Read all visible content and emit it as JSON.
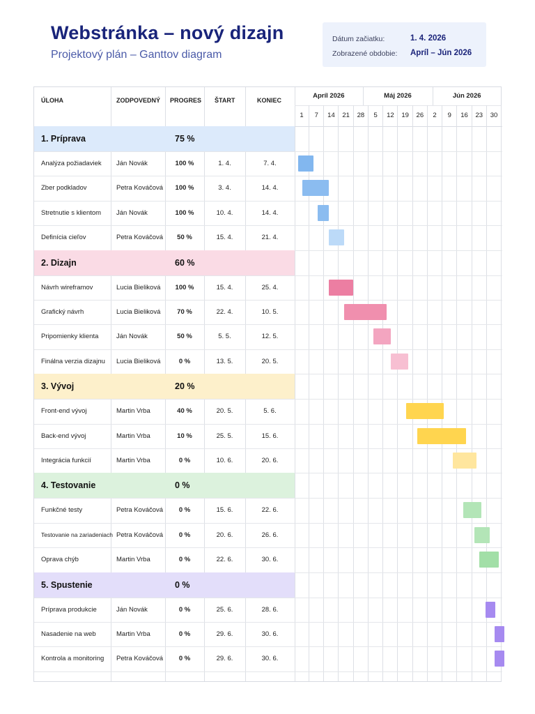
{
  "header": {
    "title": "Webstránka – nový dizajn",
    "subtitle": "Projektový plán – Ganttov diagram"
  },
  "info": {
    "start_label": "Dátum začiatku:",
    "start_value": "1. 4. 2026",
    "period_label": "Zobrazené obdobie:",
    "period_value": "Apríl – Jún 2026"
  },
  "columns": {
    "task": "ÚLOHA",
    "owner": "ZODPOVEDNÝ",
    "progress": "PROGRES",
    "start": "ŠTART",
    "end": "KONIEC"
  },
  "timeline": {
    "months": [
      "Apríl 2026",
      "Máj 2026",
      "Jún 2026"
    ],
    "days": [
      "1",
      "7",
      "14",
      "21",
      "28",
      "5",
      "12",
      "19",
      "26",
      "2",
      "9",
      "16",
      "23",
      "30"
    ]
  },
  "colors": {
    "blue": "#8fc0f2",
    "blue_light": "#bfdcf8",
    "pink": "#ee86a8",
    "pink_light": "#f7bfd1",
    "yellow": "#ffd54f",
    "yellow_light": "#ffe7a3",
    "green": "#9fdfa6",
    "green_light": "#c6ecc9",
    "purple": "#a78bf0",
    "band_blue": "#dceafb",
    "band_pink": "#fadbe5",
    "band_yellow": "#fdf0cb",
    "band_green": "#dcf2dd",
    "band_purple": "#e3defa"
  },
  "groups": [
    {
      "label": "1.  Príprava",
      "progress": "75 %",
      "band": "#dceafb",
      "tasks": [
        {
          "name": "Analýza požiadaviek",
          "owner": "Ján Novák",
          "progress": "100 %",
          "start": "1. 4.",
          "end": "7. 4.",
          "s": 1,
          "e": 7,
          "color": "#82b7ef"
        },
        {
          "name": "Zber podkladov",
          "owner": "Petra Kováčová",
          "progress": "100 %",
          "start": "3. 4.",
          "end": "14. 4.",
          "s": 3,
          "e": 14,
          "color": "#8bbcf0"
        },
        {
          "name": "Stretnutie s klientom",
          "owner": "Ján Novák",
          "progress": "100 %",
          "start": "10. 4.",
          "end": "14. 4.",
          "s": 10,
          "e": 14,
          "color": "#8bbcf0"
        },
        {
          "name": "Definícia cieľov",
          "owner": "Petra Kováčová",
          "progress": "50 %",
          "start": "15. 4.",
          "end": "21. 4.",
          "s": 15,
          "e": 21,
          "color": "#bcdaf8"
        }
      ]
    },
    {
      "label": "2.  Dizajn",
      "progress": "60 %",
      "band": "#fadbe5",
      "tasks": [
        {
          "name": "Návrh wireframov",
          "owner": "Lucia Bieliková",
          "progress": "100 %",
          "start": "15. 4.",
          "end": "25. 4.",
          "s": 15,
          "e": 25,
          "color": "#ec7ea2"
        },
        {
          "name": "Grafický návrh",
          "owner": "Lucia Bieliková",
          "progress": "70 %",
          "start": "22. 4.",
          "end": "10. 5.",
          "s": 22,
          "e": 40,
          "color": "#f08fae"
        },
        {
          "name": "Pripomienky klienta",
          "owner": "Ján Novák",
          "progress": "50 %",
          "start": "5. 5.",
          "end": "12. 5.",
          "s": 35,
          "e": 42,
          "color": "#f3a5c0"
        },
        {
          "name": "Finálna verzia dizajnu",
          "owner": "Lucia Bieliková",
          "progress": "0 %",
          "start": "13. 5.",
          "end": "20. 5.",
          "s": 43,
          "e": 50,
          "color": "#f7bfd2"
        }
      ]
    },
    {
      "label": "3.  Vývoj",
      "progress": "20 %",
      "band": "#fdf0cb",
      "tasks": [
        {
          "name": "Front-end vývoj",
          "owner": "Martin Vrba",
          "progress": "40 %",
          "start": "20. 5.",
          "end": "5. 6.",
          "s": 50,
          "e": 66,
          "color": "#ffd54f"
        },
        {
          "name": "Back-end vývoj",
          "owner": "Martin Vrba",
          "progress": "10 %",
          "start": "25. 5.",
          "end": "15. 6.",
          "s": 55,
          "e": 76,
          "color": "#ffd54f"
        },
        {
          "name": "Integrácia funkcií",
          "owner": "Martin Vrba",
          "progress": "0 %",
          "start": "10. 6.",
          "end": "20. 6.",
          "s": 71,
          "e": 81,
          "color": "#ffe69e"
        }
      ]
    },
    {
      "label": "4.  Testovanie",
      "progress": "0 %",
      "band": "#dcf2dd",
      "tasks": [
        {
          "name": "Funkčné testy",
          "owner": "Petra Kováčová",
          "progress": "0 %",
          "start": "15. 6.",
          "end": "22. 6.",
          "s": 76,
          "e": 83,
          "color": "#b3e5b7"
        },
        {
          "name": "Testovanie na zariadeniach",
          "owner": "Petra Kováčová",
          "progress": "0 %",
          "start": "20. 6.",
          "end": "26. 6.",
          "s": 81,
          "e": 87,
          "color": "#b3e5b7"
        },
        {
          "name": "Oprava chýb",
          "owner": "Martin Vrba",
          "progress": "0 %",
          "start": "22. 6.",
          "end": "30. 6.",
          "s": 83,
          "e": 91,
          "color": "#a2dfa7"
        }
      ]
    },
    {
      "label": "5.  Spustenie",
      "progress": "0 %",
      "band": "#e3defa",
      "tasks": [
        {
          "name": "Príprava produkcie",
          "owner": "Ján Novák",
          "progress": "0 %",
          "start": "25. 6.",
          "end": "28. 6.",
          "s": 86,
          "e": 89,
          "color": "#a68af0"
        },
        {
          "name": "Nasadenie na web",
          "owner": "Martin Vrba",
          "progress": "0 %",
          "start": "29. 6.",
          "end": "30. 6.",
          "s": 90,
          "e": 91,
          "color": "#a68af0"
        },
        {
          "name": "Kontrola a monitoring",
          "owner": "Petra Kováčová",
          "progress": "0 %",
          "start": "29. 6.",
          "end": "30. 6.",
          "s": 90,
          "e": 91,
          "color": "#a68af0"
        }
      ]
    }
  ]
}
